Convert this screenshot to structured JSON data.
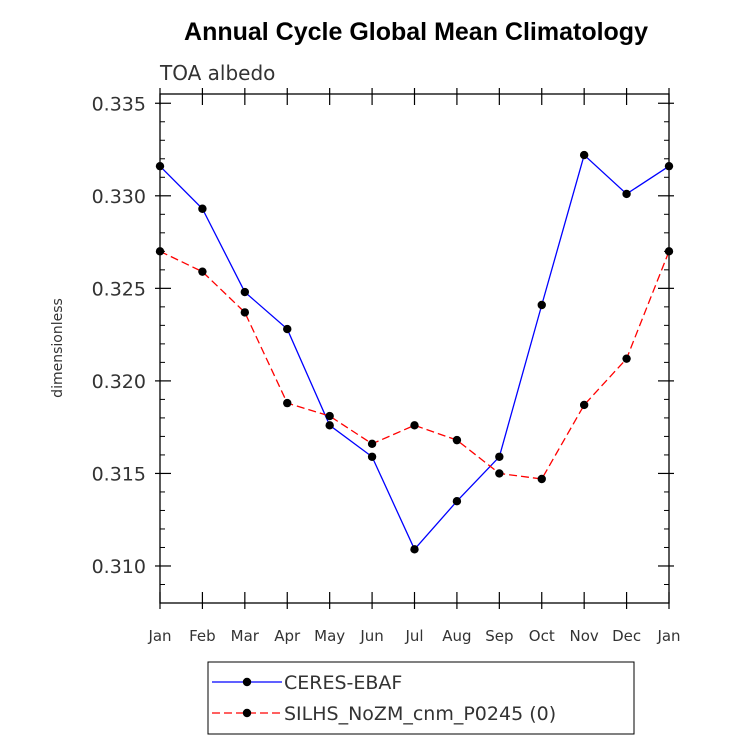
{
  "chart_data": {
    "type": "line",
    "title": "Annual Cycle Global Mean Climatology",
    "subtitle": "TOA albedo",
    "ylabel": "dimensionless",
    "xlabel": "",
    "categories": [
      "Jan",
      "Feb",
      "Mar",
      "Apr",
      "May",
      "Jun",
      "Jul",
      "Aug",
      "Sep",
      "Oct",
      "Nov",
      "Dec",
      "Jan"
    ],
    "ylim": [
      0.308,
      0.3355
    ],
    "yticks": [
      0.31,
      0.315,
      0.32,
      0.325,
      0.33,
      0.335
    ],
    "ytick_labels": [
      "0.310",
      "0.315",
      "0.320",
      "0.325",
      "0.330",
      "0.335"
    ],
    "grid": false,
    "legend_position": "bottom",
    "series": [
      {
        "name": "CERES-EBAF",
        "color": "#0000ff",
        "line_style": "solid",
        "marker": "filled-circle",
        "values": [
          0.3316,
          0.3293,
          0.3248,
          0.3228,
          0.3176,
          0.3159,
          0.3109,
          0.3135,
          0.3159,
          0.3241,
          0.3322,
          0.3301,
          0.3316
        ]
      },
      {
        "name": "SILHS_NoZM_cnm_P0245 (0)",
        "color": "#ff0000",
        "line_style": "dashed",
        "marker": "filled-circle",
        "values": [
          0.327,
          0.3259,
          0.3237,
          0.3188,
          0.3181,
          0.3166,
          0.3176,
          0.3168,
          0.315,
          0.3147,
          0.3187,
          0.3212,
          0.327
        ]
      }
    ]
  }
}
